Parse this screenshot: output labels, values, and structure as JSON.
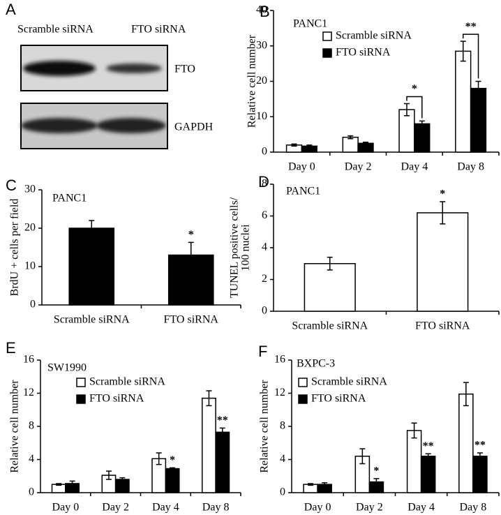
{
  "blot": {
    "panel": "A",
    "lanes": [
      "Scramble siRNA",
      "FTO siRNA"
    ],
    "bands": [
      "FTO",
      "GAPDH"
    ]
  },
  "chart_data": [
    {
      "type": "bar",
      "panel": "B",
      "title": "PANC1",
      "y_label": [
        "Relative cell number"
      ],
      "categories": [
        "Day 0",
        "Day 2",
        "Day 4",
        "Day 8"
      ],
      "ylim": [
        0,
        40
      ],
      "yticks": [
        0,
        10,
        20,
        30,
        40
      ],
      "series": [
        {
          "name": "Scramble siRNA",
          "color": "#ffffff",
          "values": [
            2,
            4.2,
            12,
            28.5
          ],
          "errors": [
            0.3,
            0.4,
            1.7,
            2.8
          ]
        },
        {
          "name": "FTO siRNA",
          "color": "#000000",
          "values": [
            1.7,
            2.5,
            8,
            18
          ],
          "errors": [
            0.3,
            0.3,
            0.8,
            2
          ]
        }
      ],
      "annotations": [
        {
          "text": "*",
          "x": "Day 4"
        },
        {
          "text": "**",
          "x": "Day 8"
        }
      ]
    },
    {
      "type": "bar",
      "panel": "C",
      "title": "PANC1",
      "y_label": [
        "BrdU + cells per field"
      ],
      "categories": [
        "Scramble siRNA",
        "FTO siRNA"
      ],
      "ylim": [
        0,
        30
      ],
      "yticks": [
        0,
        10,
        20,
        30
      ],
      "color": "#000000",
      "values": [
        20,
        13
      ],
      "errors": [
        2,
        3.3
      ],
      "annotations": [
        {
          "text": "*",
          "x": "FTO siRNA"
        }
      ]
    },
    {
      "type": "bar",
      "panel": "D",
      "title": "PANC1",
      "y_label": [
        "TUNEL positive cells/",
        "100 nuclei"
      ],
      "categories": [
        "Scramble siRNA",
        "FTO siRNA"
      ],
      "ylim": [
        0,
        8
      ],
      "yticks": [
        0,
        2,
        4,
        6,
        8
      ],
      "color": "#ffffff",
      "values": [
        3,
        6.2
      ],
      "errors": [
        0.4,
        0.7
      ],
      "annotations": [
        {
          "text": "*",
          "x": "FTO siRNA"
        }
      ]
    },
    {
      "type": "bar",
      "panel": "E",
      "title": "SW1990",
      "y_label": [
        "Relative cell number"
      ],
      "categories": [
        "Day 0",
        "Day 2",
        "Day 4",
        "Day 8"
      ],
      "ylim": [
        0,
        16
      ],
      "yticks": [
        0,
        4,
        8,
        12,
        16
      ],
      "series": [
        {
          "name": "Scramble siRNA",
          "color": "#ffffff",
          "values": [
            1,
            2.1,
            4.1,
            11.4
          ],
          "errors": [
            0.1,
            0.5,
            0.7,
            0.9
          ]
        },
        {
          "name": "FTO siRNA",
          "color": "#000000",
          "values": [
            1.1,
            1.6,
            2.9,
            7.3
          ],
          "errors": [
            0.3,
            0.2,
            0.1,
            0.5
          ]
        }
      ],
      "annotations": [
        {
          "text": "*",
          "x": "Day 4",
          "series": "FTO siRNA"
        },
        {
          "text": "**",
          "x": "Day 8",
          "series": "FTO siRNA"
        }
      ]
    },
    {
      "type": "bar",
      "panel": "F",
      "title": "BXPC-3",
      "y_label": [
        "Relative cell number"
      ],
      "categories": [
        "Day 0",
        "Day 2",
        "Day 4",
        "Day 8"
      ],
      "ylim": [
        0,
        16
      ],
      "yticks": [
        0,
        4,
        8,
        12,
        16
      ],
      "series": [
        {
          "name": "Scramble siRNA",
          "color": "#ffffff",
          "values": [
            1,
            4.4,
            7.5,
            11.9
          ],
          "errors": [
            0.1,
            0.9,
            0.9,
            1.4
          ]
        },
        {
          "name": "FTO siRNA",
          "color": "#000000",
          "values": [
            1,
            1.3,
            4.4,
            4.4
          ],
          "errors": [
            0.2,
            0.4,
            0.3,
            0.4
          ]
        }
      ],
      "annotations": [
        {
          "text": "*",
          "x": "Day 2",
          "series": "FTO siRNA"
        },
        {
          "text": "**",
          "x": "Day 4",
          "series": "FTO siRNA"
        },
        {
          "text": "**",
          "x": "Day 8",
          "series": "FTO siRNA"
        }
      ]
    }
  ]
}
